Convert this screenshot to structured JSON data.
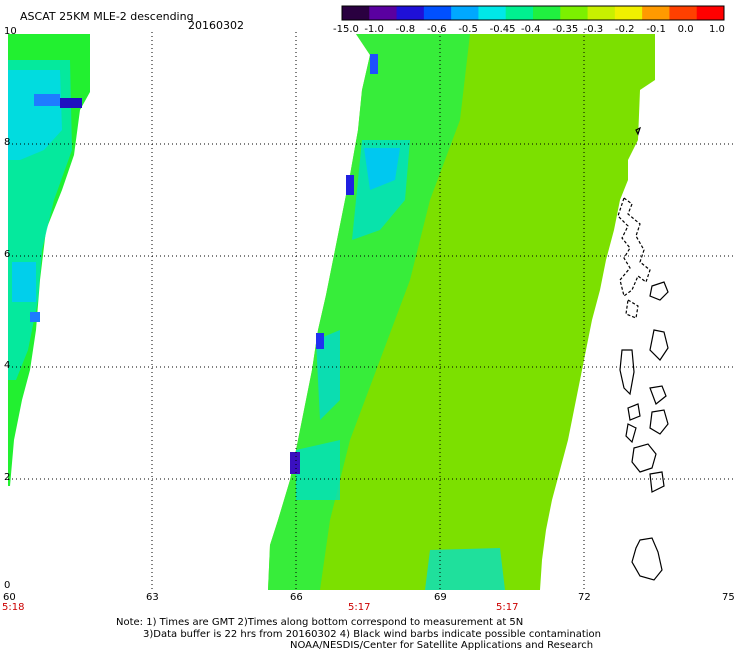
{
  "header": {
    "title": "ASCAT 25KM MLE-2 descending",
    "date": "20160302"
  },
  "colorbar": {
    "labels": [
      "-15.0",
      "-1.0",
      "-0.8",
      "-0.6",
      "-0.5",
      "-0.45",
      "-0.4",
      "-0.35",
      "-0.3",
      "-0.2",
      "-0.1",
      "0.0",
      "1.0"
    ],
    "colors": [
      "#2a0040",
      "#5a00a0",
      "#1f10d8",
      "#0050ff",
      "#00a8ff",
      "#00e8e8",
      "#00f090",
      "#20f040",
      "#7cf000",
      "#c8f000",
      "#f0f000",
      "#ff9a00",
      "#ff4000",
      "#ff0000"
    ]
  },
  "axes": {
    "x_ticks": [
      "60",
      "63",
      "66",
      "69",
      "72",
      "75"
    ],
    "y_ticks": [
      "10",
      "8",
      "6",
      "4",
      "2",
      "0"
    ]
  },
  "pass_times": [
    "5:18",
    "5:17",
    "5:17"
  ],
  "footer": {
    "note_line1": "Note: 1) Times are GMT 2)Times along bottom correspond to measurement at 5N",
    "note_line2": "3)Data buffer is 22 hrs from 20160302 4) Black wind barbs indicate possible contamination",
    "credit": "NOAA/NESDIS/Center for Satellite Applications and Research"
  }
}
